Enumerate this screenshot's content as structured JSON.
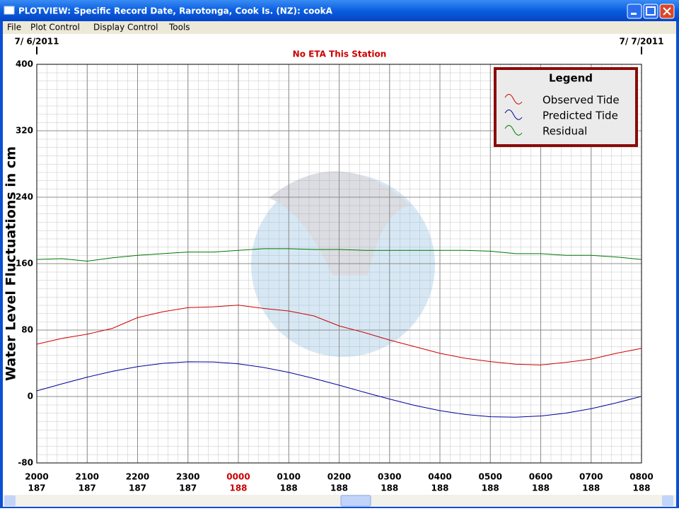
{
  "window": {
    "title": "PLOTVIEW: Specific Record Date, Rarotonga, Cook Is. (NZ): cookA",
    "menu": [
      "File",
      "Plot Control",
      "Display Control",
      "Tools"
    ]
  },
  "chart_data": {
    "type": "line",
    "subtitle": "No ETA This Station",
    "ylabel": "Water Level Fluctuations in cm",
    "date_labels": [
      "7/ 6/2011",
      "7/ 7/2011"
    ],
    "legend_title": "Legend",
    "legend": "upper right",
    "grid": true,
    "x": [
      0,
      0.5,
      1,
      1.5,
      2,
      2.5,
      3,
      3.5,
      4,
      4.5,
      5,
      5.5,
      6,
      6.5,
      7,
      7.5,
      8,
      8.5,
      9,
      9.5,
      10,
      10.5,
      11,
      11.5,
      12
    ],
    "xlim": [
      0,
      12
    ],
    "xticks": [
      {
        "value": 0,
        "label": "2000"
      },
      {
        "value": 1,
        "label": "2100"
      },
      {
        "value": 2,
        "label": "2200"
      },
      {
        "value": 3,
        "label": "2300"
      },
      {
        "value": 4,
        "label": "0000"
      },
      {
        "value": 5,
        "label": "0100"
      },
      {
        "value": 6,
        "label": "0200"
      },
      {
        "value": 7,
        "label": "0300"
      },
      {
        "value": 8,
        "label": "0400"
      },
      {
        "value": 9,
        "label": "0500"
      },
      {
        "value": 10,
        "label": "0600"
      },
      {
        "value": 11,
        "label": "0700"
      },
      {
        "value": 12,
        "label": "0800"
      }
    ],
    "xtick_days": [
      "187",
      "187",
      "187",
      "187",
      "188",
      "188",
      "188",
      "188",
      "188",
      "188",
      "188",
      "188",
      "188"
    ],
    "highlight_xtick_index": 4,
    "highlight_color": "#cc0000",
    "ylim": [
      -80,
      400
    ],
    "yticks": [
      -80,
      0,
      80,
      160,
      240,
      320,
      400
    ],
    "series": [
      {
        "name": "Observed Tide",
        "color": "#cc0000",
        "values": [
          63,
          70,
          75,
          82,
          95,
          102,
          107,
          108,
          110,
          106,
          103,
          97,
          85,
          77,
          68,
          60,
          52,
          46,
          42,
          39,
          38,
          41,
          45,
          52,
          58
        ]
      },
      {
        "name": "Predicted Tide",
        "color": "#000099",
        "values": [
          6.8,
          15.2,
          23.3,
          30.3,
          36,
          39.9,
          41.8,
          41.6,
          39.3,
          35,
          29,
          21.7,
          13.6,
          5.1,
          -3.1,
          -10.7,
          -17,
          -21.6,
          -24.3,
          -24.9,
          -23.5,
          -20,
          -14.6,
          -7.7,
          0.2
        ]
      },
      {
        "name": "Residual",
        "color": "#007700",
        "values": [
          165,
          166,
          163,
          167,
          170,
          172,
          174,
          174,
          176,
          178,
          178,
          177,
          177,
          176,
          176,
          176,
          176,
          176,
          175,
          172,
          172,
          170,
          170,
          168,
          165
        ]
      }
    ]
  }
}
